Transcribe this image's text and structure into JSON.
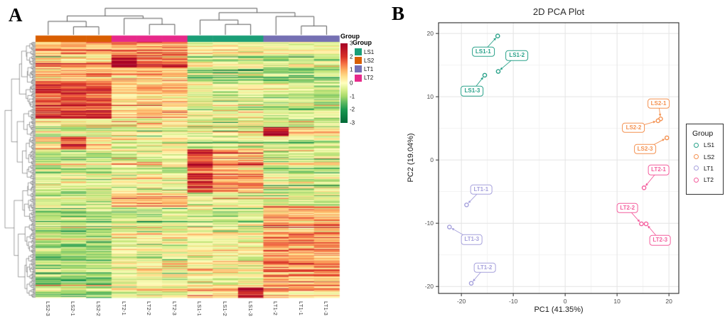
{
  "chart_data": [
    {
      "type": "heatmap",
      "panel_letter": "A",
      "annotation_title": "Group",
      "columns": [
        "LS2-3",
        "LS2-1",
        "LS2-2",
        "LT2-1",
        "LT2-2",
        "LT2-3",
        "LS1-1",
        "LS1-2",
        "LS1-3",
        "LT1-2",
        "LT1-1",
        "LT1-3"
      ],
      "column_groups": [
        "LS2",
        "LS2",
        "LS2",
        "LT2",
        "LT2",
        "LT2",
        "LS1",
        "LS1",
        "LS1",
        "LT1",
        "LT1",
        "LT1"
      ],
      "group_colors": {
        "LS1": "#1B9E77",
        "LS2": "#D95F02",
        "LT1": "#7570B3",
        "LT2": "#E7298A"
      },
      "colorscale": {
        "ticks": [
          3,
          2,
          1,
          0,
          -1,
          -2,
          -3
        ],
        "stops": [
          {
            "v": -3,
            "c": "#006837"
          },
          {
            "v": -2,
            "c": "#1a9850"
          },
          {
            "v": -1.4,
            "c": "#66bd63"
          },
          {
            "v": -1,
            "c": "#a6d96a"
          },
          {
            "v": -0.5,
            "c": "#d9ef8b"
          },
          {
            "v": 0,
            "c": "#ffffbf"
          },
          {
            "v": 0.5,
            "c": "#fee08b"
          },
          {
            "v": 1,
            "c": "#fdae61"
          },
          {
            "v": 1.5,
            "c": "#f46d43"
          },
          {
            "v": 2,
            "c": "#d73027"
          },
          {
            "v": 3,
            "c": "#a50026"
          }
        ]
      },
      "legend": {
        "title": "Group",
        "items": [
          {
            "label": "LS1",
            "color": "#1B9E77"
          },
          {
            "label": "LS2",
            "color": "#D95F02"
          },
          {
            "label": "LT1",
            "color": "#7570B3"
          },
          {
            "label": "LT2",
            "color": "#E7298A"
          }
        ]
      },
      "col_dendrogram": {
        "h": 1,
        "c": [
          {
            "h": 0.72,
            "c": [
              {
                "h": 0.52,
                "c": [
                  0,
                  {
                    "h": 0.32,
                    "c": [
                      1,
                      2
                    ]
                  }
                ]
              },
              {
                "h": 0.63,
                "c": [
                  3,
                  {
                    "h": 0.41,
                    "c": [
                      4,
                      5
                    ]
                  }
                ]
              }
            ]
          },
          {
            "h": 0.84,
            "c": [
              {
                "h": 0.57,
                "c": [
                  6,
                  {
                    "h": 0.41,
                    "c": [
                      7,
                      8
                    ]
                  }
                ]
              },
              {
                "h": 0.7,
                "c": [
                  9,
                  {
                    "h": 0.35,
                    "c": [
                      10,
                      11
                    ]
                  }
                ]
              }
            ]
          }
        ]
      },
      "band_pattern": {
        "description": "Approximate per-group z-score means read from the rendered heatmap, by vertical fraction of the row axis (rows are unlabeled clustered features).",
        "groups": [
          "LS2",
          "LT2",
          "LS1",
          "LT1"
        ],
        "bands": [
          {
            "from": 0.0,
            "to": 0.05,
            "LS2": 0.9,
            "LT2": 1.2,
            "LS1": 0.0,
            "LT1": -0.2
          },
          {
            "from": 0.05,
            "to": 0.1,
            "LS2": 0.5,
            "LT2": 1.6,
            "LS1": -0.4,
            "LT1": -0.6,
            "boost_col": 3,
            "boost": 1.2
          },
          {
            "from": 0.1,
            "to": 0.155,
            "LS2": 0.8,
            "LT2": 0.8,
            "LS1": -0.7,
            "LT1": -1.0
          },
          {
            "from": 0.155,
            "to": 0.3,
            "LS2": 1.9,
            "LT2": 0.6,
            "LS1": -0.3,
            "LT1": -0.6
          },
          {
            "from": 0.3,
            "to": 0.335,
            "LS2": -0.2,
            "LT2": 0.2,
            "LS1": -0.4,
            "LT1": -0.3
          },
          {
            "from": 0.335,
            "to": 0.37,
            "LS2": -0.4,
            "LT2": -0.2,
            "LS1": -0.3,
            "LT1": 0.3,
            "boost_col": 9,
            "boost": 2.2
          },
          {
            "from": 0.37,
            "to": 0.42,
            "LS2": 0.5,
            "LT2": -0.1,
            "LS1": -0.4,
            "LT1": -0.5,
            "boost_col": 1,
            "boost": 1.3
          },
          {
            "from": 0.42,
            "to": 0.59,
            "LS2": -0.5,
            "LT2": -0.2,
            "LS1": 0.9,
            "LT1": -0.4,
            "boost_col": 6,
            "boost": 1.0
          },
          {
            "from": 0.59,
            "to": 0.645,
            "LS2": -0.4,
            "LT2": 1.1,
            "LS1": 0.0,
            "LT1": -0.3
          },
          {
            "from": 0.645,
            "to": 0.73,
            "LS2": -0.6,
            "LT2": -0.3,
            "LS1": -0.2,
            "LT1": 1.2
          },
          {
            "from": 0.73,
            "to": 0.96,
            "LS2": -0.9,
            "LT2": -0.1,
            "LS1": 0.1,
            "LT1": 1.1
          },
          {
            "from": 0.96,
            "to": 1.0,
            "LS2": -0.7,
            "LT2": 0.2,
            "LS1": 0.8,
            "LT1": 0.9,
            "boost_col": 8,
            "boost": 2.0
          }
        ],
        "noise": {
          "row_sd": 0.5,
          "cell_sd": 0.45,
          "spike_prob": 0.04,
          "spike_mag": 2.4
        },
        "n_rows_rendered": 300,
        "seed": 42
      }
    },
    {
      "type": "scatter",
      "panel_letter": "B",
      "title": "2D PCA Plot",
      "xlabel": "PC1 (41.35%)",
      "ylabel": "PC2 (19.04%)",
      "x_ticks": [
        -20,
        -10,
        0,
        10,
        20
      ],
      "y_ticks": [
        20,
        10,
        0,
        -10,
        -20
      ],
      "xlim": [
        -24.4,
        21.9
      ],
      "ylim": [
        -21.1,
        21.7
      ],
      "minor_step": 5,
      "grid": true,
      "legend": {
        "title": "Group",
        "position": "right",
        "items": [
          {
            "label": "LS1",
            "color": "#2AA28A"
          },
          {
            "label": "LS2",
            "color": "#F49150"
          },
          {
            "label": "LT1",
            "color": "#A6A1DC"
          },
          {
            "label": "LT2",
            "color": "#F45F9E"
          }
        ]
      },
      "series": [
        {
          "name": "LS1",
          "color": "#2AA28A",
          "points": [
            {
              "label": "LS1-1",
              "x": -13.0,
              "y": 19.6,
              "label_x": -15.8,
              "label_y": 17.1
            },
            {
              "label": "LS1-2",
              "x": -12.9,
              "y": 14.0,
              "label_x": -9.3,
              "label_y": 16.5
            },
            {
              "label": "LS1-3",
              "x": -15.5,
              "y": 13.4,
              "label_x": -17.9,
              "label_y": 10.9
            }
          ]
        },
        {
          "name": "LS2",
          "color": "#F49150",
          "points": [
            {
              "label": "LS2-1",
              "x": 18.4,
              "y": 6.5,
              "label_x": 18.0,
              "label_y": 8.9
            },
            {
              "label": "LS2-2",
              "x": 17.9,
              "y": 6.2,
              "label_x": 13.2,
              "label_y": 5.1
            },
            {
              "label": "LS2-3",
              "x": 19.6,
              "y": 3.5,
              "label_x": 15.4,
              "label_y": 1.7
            }
          ]
        },
        {
          "name": "LT1",
          "color": "#A6A1DC",
          "points": [
            {
              "label": "LT1-1",
              "x": -19.0,
              "y": -7.1,
              "label_x": -16.2,
              "label_y": -4.7
            },
            {
              "label": "LT1-2",
              "x": -18.1,
              "y": -19.5,
              "label_x": -15.5,
              "label_y": -17.0
            },
            {
              "label": "LT1-3",
              "x": -22.3,
              "y": -10.6,
              "label_x": -18.0,
              "label_y": -12.6
            }
          ]
        },
        {
          "name": "LT2",
          "color": "#F45F9E",
          "points": [
            {
              "label": "LT2-1",
              "x": 15.2,
              "y": -4.4,
              "label_x": 18.0,
              "label_y": -1.6
            },
            {
              "label": "LT2-2",
              "x": 14.7,
              "y": -10.1,
              "label_x": 12.0,
              "label_y": -7.6
            },
            {
              "label": "LT2-3",
              "x": 15.6,
              "y": -10.1,
              "label_x": 18.3,
              "label_y": -12.7
            }
          ]
        }
      ]
    }
  ]
}
